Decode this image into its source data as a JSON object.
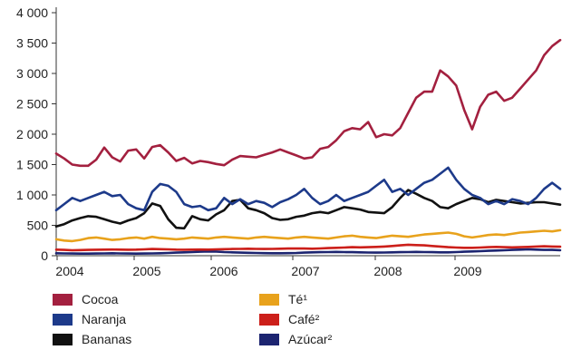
{
  "chart_data": {
    "type": "line",
    "ylim": [
      0,
      4000
    ],
    "y_ticks": [
      0,
      500,
      1000,
      1500,
      2000,
      2500,
      3000,
      3500,
      4000
    ],
    "y_tick_labels": [
      "0",
      "500",
      "1 000",
      "1 500",
      "2 000",
      "2 500",
      "3 000",
      "3 500",
      "4 000"
    ],
    "x_tick_labels": [
      "2004",
      "2005",
      "2006",
      "2007",
      "2008",
      "2009"
    ],
    "grid": false,
    "legend_position": "bottom",
    "series": [
      {
        "name": "Cocoa",
        "color": "#a3203f",
        "values": [
          1680,
          1600,
          1500,
          1480,
          1480,
          1580,
          1780,
          1620,
          1550,
          1730,
          1750,
          1600,
          1790,
          1820,
          1700,
          1560,
          1610,
          1520,
          1560,
          1540,
          1510,
          1490,
          1580,
          1640,
          1630,
          1620,
          1660,
          1700,
          1750,
          1700,
          1650,
          1600,
          1620,
          1760,
          1790,
          1900,
          2050,
          2100,
          2080,
          2200,
          1950,
          2000,
          1980,
          2100,
          2350,
          2600,
          2700,
          2700,
          3050,
          2950,
          2800,
          2400,
          2080,
          2450,
          2650,
          2700,
          2550,
          2600,
          2750,
          2900,
          3050,
          3300,
          3450,
          3550
        ]
      },
      {
        "name": "Naranja",
        "color": "#1d3a8a",
        "values": [
          750,
          850,
          950,
          900,
          950,
          1000,
          1050,
          980,
          1000,
          850,
          780,
          750,
          1050,
          1180,
          1150,
          1050,
          850,
          800,
          820,
          750,
          780,
          950,
          850,
          930,
          850,
          900,
          870,
          800,
          880,
          930,
          1000,
          1100,
          950,
          850,
          900,
          1000,
          900,
          950,
          1000,
          1050,
          1150,
          1250,
          1050,
          1100,
          1000,
          1100,
          1200,
          1250,
          1350,
          1450,
          1250,
          1100,
          1000,
          950,
          850,
          900,
          850,
          930,
          900,
          850,
          950,
          1100,
          1200,
          1100
        ]
      },
      {
        "name": "Bananas",
        "color": "#111111",
        "values": [
          480,
          520,
          580,
          620,
          650,
          640,
          600,
          560,
          530,
          580,
          620,
          700,
          860,
          820,
          600,
          460,
          450,
          650,
          600,
          580,
          680,
          750,
          900,
          920,
          780,
          750,
          700,
          620,
          590,
          600,
          640,
          660,
          700,
          720,
          700,
          750,
          800,
          780,
          760,
          720,
          710,
          700,
          800,
          950,
          1080,
          1020,
          950,
          900,
          800,
          780,
          850,
          900,
          950,
          930,
          880,
          920,
          900,
          880,
          860,
          870,
          880,
          880,
          860,
          840
        ]
      },
      {
        "name": "Té¹",
        "color": "#e8a21c",
        "values": [
          270,
          250,
          240,
          260,
          290,
          300,
          280,
          260,
          270,
          290,
          300,
          280,
          310,
          290,
          280,
          270,
          280,
          300,
          290,
          280,
          300,
          310,
          300,
          290,
          280,
          300,
          310,
          300,
          290,
          280,
          300,
          310,
          300,
          290,
          280,
          300,
          320,
          330,
          310,
          300,
          290,
          310,
          330,
          320,
          310,
          330,
          350,
          360,
          370,
          380,
          360,
          320,
          300,
          320,
          340,
          350,
          340,
          360,
          380,
          390,
          400,
          410,
          400,
          420
        ]
      },
      {
        "name": "Café²",
        "color": "#cc1f1a",
        "values": [
          100,
          95,
          90,
          92,
          95,
          98,
          100,
          102,
          100,
          98,
          100,
          105,
          110,
          108,
          105,
          100,
          98,
          100,
          102,
          100,
          105,
          108,
          110,
          112,
          115,
          112,
          110,
          112,
          115,
          118,
          120,
          118,
          115,
          120,
          125,
          130,
          135,
          140,
          138,
          140,
          145,
          150,
          160,
          170,
          180,
          175,
          170,
          160,
          150,
          140,
          135,
          130,
          130,
          135,
          140,
          145,
          140,
          138,
          140,
          145,
          150,
          155,
          150,
          148
        ]
      },
      {
        "name": "Azúcar²",
        "color": "#1c2470",
        "values": [
          40,
          38,
          36,
          35,
          35,
          36,
          38,
          40,
          38,
          36,
          35,
          36,
          38,
          40,
          45,
          50,
          55,
          60,
          65,
          70,
          68,
          60,
          55,
          50,
          48,
          45,
          42,
          40,
          40,
          42,
          45,
          50,
          55,
          58,
          60,
          62,
          60,
          58,
          55,
          52,
          50,
          52,
          55,
          58,
          60,
          62,
          60,
          58,
          55,
          55,
          60,
          65,
          70,
          75,
          80,
          85,
          90,
          95,
          100,
          105,
          100,
          95,
          95,
          90
        ]
      }
    ]
  }
}
